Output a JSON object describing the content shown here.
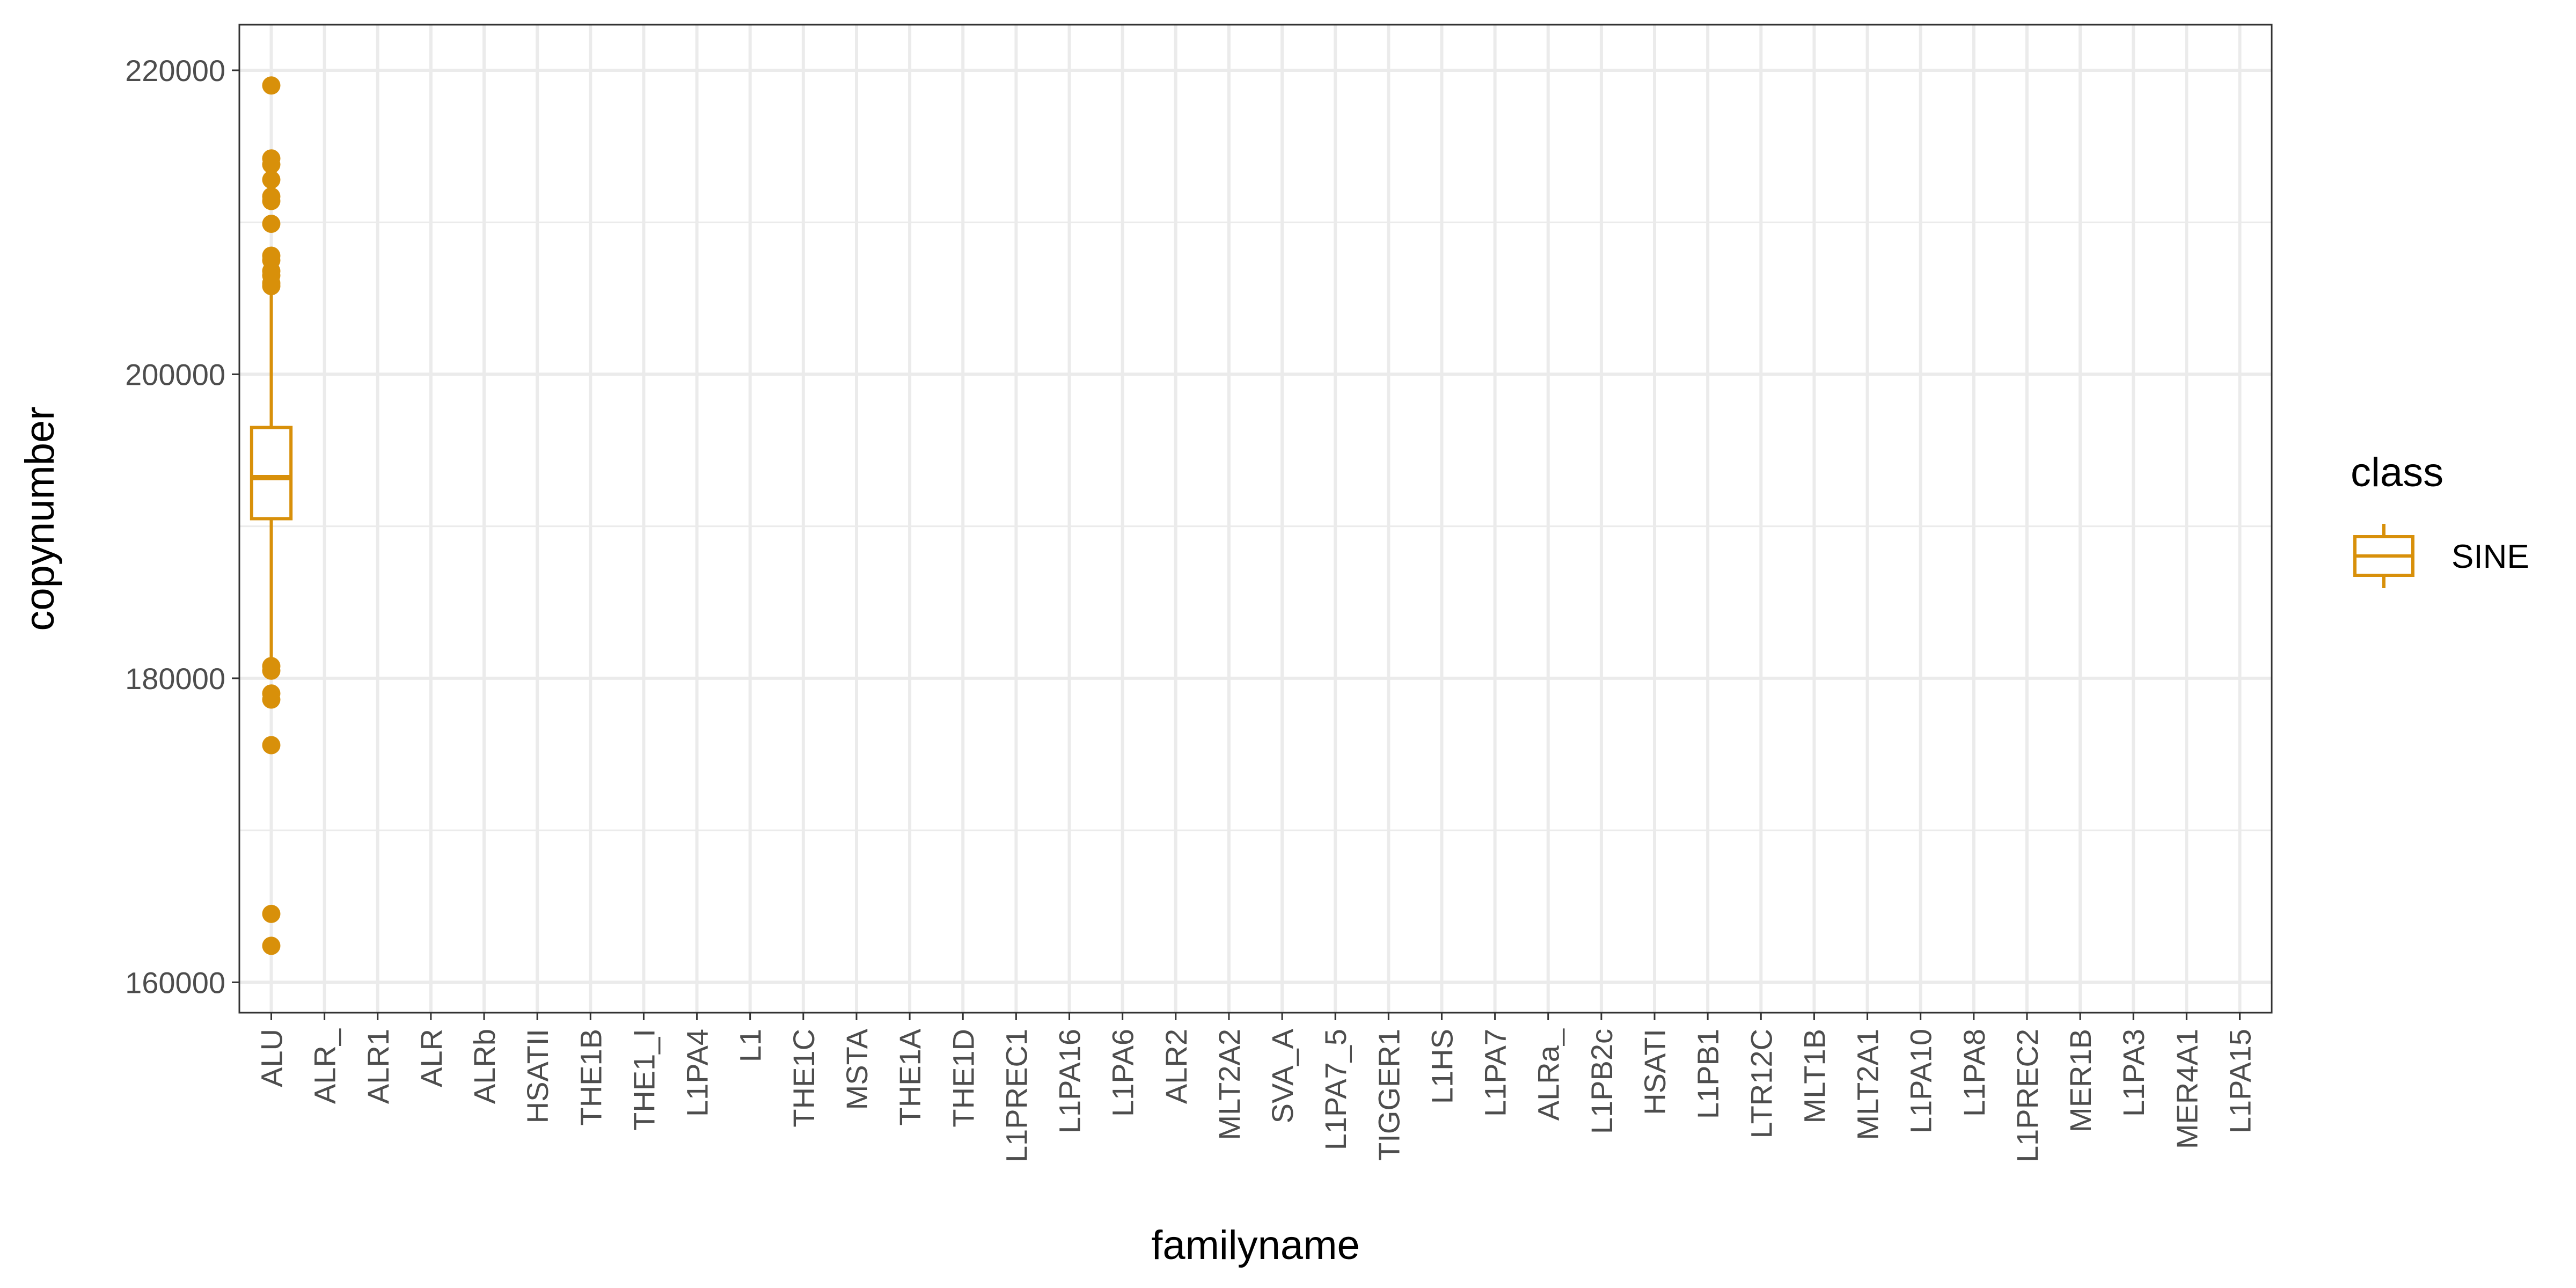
{
  "chart_data": {
    "type": "boxplot",
    "xlabel": "familyname",
    "ylabel": "copynumber",
    "categories": [
      "ALU",
      "ALR_",
      "ALR1",
      "ALR",
      "ALRb",
      "HSATII",
      "THE1B",
      "THE1_I",
      "L1PA4",
      "L1",
      "THE1C",
      "MSTA",
      "THE1A",
      "THE1D",
      "L1PREC1",
      "L1PA16",
      "L1PA6",
      "ALR2",
      "MLT2A2",
      "SVA_A",
      "L1PA7_5",
      "TIGGER1",
      "L1HS",
      "L1PA7",
      "ALRa_",
      "L1PB2c",
      "HSATI",
      "L1PB1",
      "LTR12C",
      "MLT1B",
      "MLT2A1",
      "L1PA10",
      "L1PA8",
      "L1PREC2",
      "MER1B",
      "L1PA3",
      "MER4A1",
      "L1PA15"
    ],
    "ylim": [
      158000,
      223000
    ],
    "yticks": [
      160000,
      180000,
      200000,
      220000
    ],
    "yticklabels": [
      "160000",
      "180000",
      "200000",
      "220000"
    ],
    "grid": true,
    "legend": {
      "title": "class",
      "position": "right",
      "entries": [
        "SINE"
      ]
    },
    "series": [
      {
        "name": "SINE",
        "color": "#D8900A",
        "boxes": [
          {
            "category": "ALU",
            "whisker_low": 181000,
            "q1": 190500,
            "median": 193200,
            "q3": 196500,
            "whisker_high": 205500,
            "outliers": [
              219000,
              214200,
              213800,
              212800,
              211700,
              211400,
              209900,
              207800,
              207500,
              206800,
              206500,
              206000,
              205800,
              180800,
              180500,
              179000,
              178600,
              175600,
              164500,
              162400
            ]
          }
        ]
      }
    ]
  }
}
